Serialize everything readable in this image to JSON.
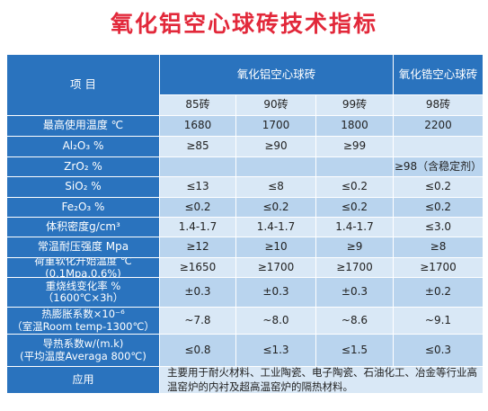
{
  "title": "氧化铝空心球砖技术指标",
  "header": {
    "item": "项   目",
    "alumina_group": "氧化铝空心球砖",
    "zirconia_group": "氧化锆空心球砖"
  },
  "grades": [
    "85砖",
    "90砖",
    "99砖",
    "98砖"
  ],
  "rows": [
    {
      "label": "最高使用温度 ℃",
      "values": [
        "1680",
        "1700",
        "1800",
        "2200"
      ]
    },
    {
      "label": "Al₂O₃ %",
      "values": [
        "≥85",
        "≥90",
        "≥99",
        ""
      ]
    },
    {
      "label": "ZrO₂ %",
      "values": [
        "",
        "",
        "",
        "≥98（含稳定剂）"
      ]
    },
    {
      "label": "SiO₂ %",
      "values": [
        "≤13",
        "≤8",
        "≤0.2",
        "≤0.2"
      ]
    },
    {
      "label": "Fe₂O₃ %",
      "values": [
        "≤0.2",
        "≤0.2",
        "≤0.2",
        "≤0.2"
      ]
    },
    {
      "label": "体积密度g/cm³",
      "values": [
        "1.4-1.7",
        "1.4-1.7",
        "1.4-1.7",
        "≤3.0"
      ]
    },
    {
      "label": "常温耐压强度 Mpa",
      "values": [
        "≥12",
        "≥10",
        "≥9",
        "≥8"
      ]
    },
    {
      "label": "荷重软化开始温度 ℃",
      "label2": "(0.1Mpa,0.6%)",
      "values": [
        "≥1650",
        "≥1700",
        "≥1700",
        "≥1700"
      ]
    },
    {
      "label": "重烧线变化率 %",
      "label2": "（1600℃×3h）",
      "values": [
        "±0.3",
        "±0.3",
        "±0.3",
        "±0.2"
      ]
    },
    {
      "label": "热膨胀系数×10⁻⁶",
      "label2": "（室温Room temp-1300℃）",
      "values": [
        "~7.8",
        "~8.0",
        "~8.6",
        "~9.1"
      ]
    },
    {
      "label": "导热系数w/(m.k)",
      "label2": "(平均温度Averaga 800℃)",
      "values": [
        "≤0.8",
        "≤1.3",
        "≤1.5",
        "≤0.3"
      ]
    }
  ],
  "application": {
    "label": "应用",
    "text": "主要用于耐火材料、工业陶瓷、电子陶瓷、石油化工、冶金等行业高温窑炉的内衬及超高温窑炉的隔热材料。"
  }
}
